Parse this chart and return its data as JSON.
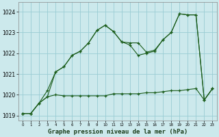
{
  "title": "Graphe pression niveau de la mer (hPa)",
  "bg_color": "#cce9ec",
  "grid_color": "#99ccd4",
  "line_color": "#1a5c1a",
  "x": [
    0,
    1,
    2,
    3,
    4,
    5,
    6,
    7,
    8,
    9,
    10,
    11,
    12,
    13,
    14,
    15,
    16,
    17,
    18,
    19,
    20,
    21,
    22,
    23
  ],
  "line1": [
    1019.1,
    1019.1,
    1019.6,
    1019.9,
    1021.1,
    1021.35,
    1021.9,
    1022.1,
    1022.5,
    1023.1,
    1023.35,
    1023.05,
    1022.55,
    1022.4,
    1021.9,
    1022.0,
    1022.1,
    1022.65,
    1023.0,
    1023.9,
    1023.85,
    1023.85,
    1019.75,
    1020.3
  ],
  "line2": [
    1019.1,
    1019.1,
    1019.6,
    1019.9,
    1020.0,
    1019.95,
    1019.95,
    1019.95,
    1019.95,
    1019.95,
    1019.95,
    1020.05,
    1020.05,
    1020.05,
    1020.05,
    1020.1,
    1020.1,
    1020.15,
    1020.2,
    1020.2,
    1020.25,
    1020.3,
    1019.75,
    1020.3
  ],
  "line3": [
    1019.1,
    1019.1,
    1019.6,
    1020.2,
    1021.1,
    1021.35,
    1021.9,
    1022.1,
    1022.5,
    1023.1,
    1023.35,
    1023.05,
    1022.55,
    1022.5,
    1022.5,
    1022.05,
    1022.15,
    1022.65,
    1023.0,
    1023.9,
    1023.85,
    1023.85,
    1019.75,
    1020.3
  ],
  "ylim_min": 1018.75,
  "ylim_max": 1024.45,
  "yticks": [
    1019,
    1020,
    1021,
    1022,
    1023,
    1024
  ],
  "xlim_min": -0.5,
  "xlim_max": 23.5,
  "fig_width": 3.2,
  "fig_height": 2.0,
  "dpi": 100
}
